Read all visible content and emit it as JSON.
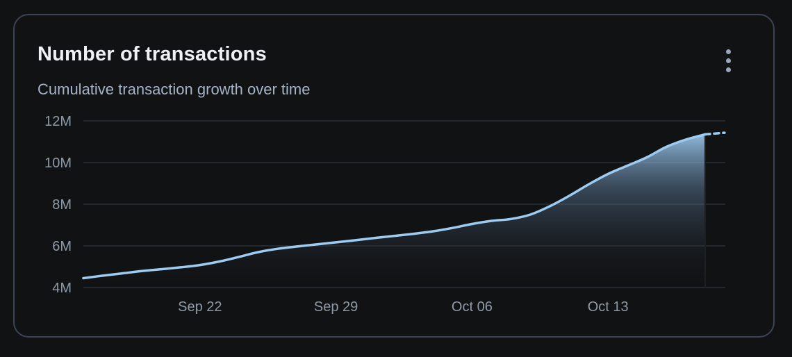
{
  "card": {
    "title": "Number of transactions",
    "subtitle": "Cumulative transaction growth over time",
    "menu_icon": "more-vertical-icon"
  },
  "colors": {
    "background": "#111214",
    "border": "#3b4452",
    "line": "#9ecbf2",
    "grid": "#2a2f37",
    "text_primary": "#eef0f3",
    "text_secondary": "#a5b4c6",
    "tick_text": "#8f9aa8"
  },
  "chart_data": {
    "type": "area",
    "title": "Number of transactions",
    "subtitle": "Cumulative transaction growth over time",
    "x_range": [
      "2024-09-16",
      "2024-10-19"
    ],
    "ylim": [
      4000000,
      12000000
    ],
    "y_ticks": [
      {
        "value": 4000000,
        "label": "4M"
      },
      {
        "value": 6000000,
        "label": "6M"
      },
      {
        "value": 8000000,
        "label": "8M"
      },
      {
        "value": 10000000,
        "label": "10M"
      },
      {
        "value": 12000000,
        "label": "12M"
      }
    ],
    "x_ticks": [
      {
        "date": "2024-09-22",
        "label": "Sep 22"
      },
      {
        "date": "2024-09-29",
        "label": "Sep 29"
      },
      {
        "date": "2024-10-06",
        "label": "Oct 06"
      },
      {
        "date": "2024-10-13",
        "label": "Oct 13"
      }
    ],
    "grid": true,
    "series": [
      {
        "points": [
          {
            "x": "2024-09-16",
            "y": 4450000
          },
          {
            "x": "2024-09-17",
            "y": 4570000
          },
          {
            "x": "2024-09-18",
            "y": 4680000
          },
          {
            "x": "2024-09-19",
            "y": 4790000
          },
          {
            "x": "2024-09-20",
            "y": 4880000
          },
          {
            "x": "2024-09-21",
            "y": 4970000
          },
          {
            "x": "2024-09-22",
            "y": 5080000
          },
          {
            "x": "2024-09-23",
            "y": 5250000
          },
          {
            "x": "2024-09-24",
            "y": 5470000
          },
          {
            "x": "2024-09-25",
            "y": 5700000
          },
          {
            "x": "2024-09-26",
            "y": 5860000
          },
          {
            "x": "2024-09-27",
            "y": 5970000
          },
          {
            "x": "2024-09-28",
            "y": 6070000
          },
          {
            "x": "2024-09-29",
            "y": 6170000
          },
          {
            "x": "2024-09-30",
            "y": 6270000
          },
          {
            "x": "2024-10-01",
            "y": 6380000
          },
          {
            "x": "2024-10-02",
            "y": 6480000
          },
          {
            "x": "2024-10-03",
            "y": 6580000
          },
          {
            "x": "2024-10-04",
            "y": 6700000
          },
          {
            "x": "2024-10-05",
            "y": 6860000
          },
          {
            "x": "2024-10-06",
            "y": 7050000
          },
          {
            "x": "2024-10-07",
            "y": 7200000
          },
          {
            "x": "2024-10-08",
            "y": 7290000
          },
          {
            "x": "2024-10-09",
            "y": 7500000
          },
          {
            "x": "2024-10-10",
            "y": 7900000
          },
          {
            "x": "2024-10-11",
            "y": 8400000
          },
          {
            "x": "2024-10-12",
            "y": 8950000
          },
          {
            "x": "2024-10-13",
            "y": 9450000
          },
          {
            "x": "2024-10-14",
            "y": 9850000
          },
          {
            "x": "2024-10-15",
            "y": 10250000
          },
          {
            "x": "2024-10-16",
            "y": 10750000
          },
          {
            "x": "2024-10-17",
            "y": 11100000
          },
          {
            "x": "2024-10-18",
            "y": 11350000
          }
        ],
        "projected": [
          {
            "x": "2024-10-18",
            "y": 11350000
          },
          {
            "x": "2024-10-19",
            "y": 11430000
          }
        ]
      }
    ]
  }
}
